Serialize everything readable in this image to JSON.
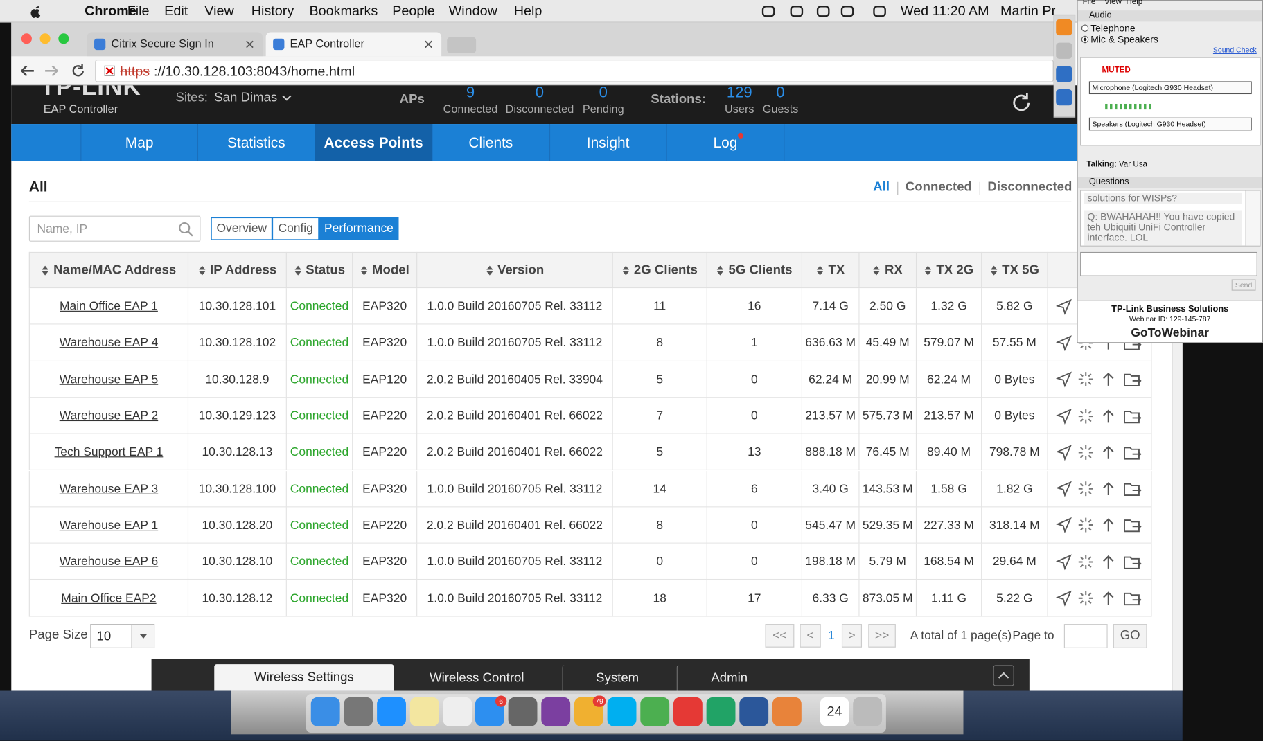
{
  "menubar": {
    "app": "Chrome",
    "menus": [
      "File",
      "Edit",
      "View",
      "History",
      "Bookmarks",
      "People",
      "Window",
      "Help"
    ],
    "clock": "Wed 11:20 AM",
    "user": "Martin Pr"
  },
  "browser": {
    "tabs": [
      "Citrix Secure Sign In",
      "EAP Controller"
    ],
    "active_tab": 1,
    "url_scheme": "https",
    "url_rest": "://10.30.128.103:8043/home.html"
  },
  "header": {
    "logo": "TP-LINK",
    "product": "EAP Controller",
    "sites_label": "Sites:",
    "site": "San Dimas",
    "aps_label": "APs",
    "aps": [
      {
        "value": 9,
        "label": "Connected"
      },
      {
        "value": 0,
        "label": "Disconnected"
      },
      {
        "value": 0,
        "label": "Pending"
      }
    ],
    "stations_label": "Stations:",
    "stations": [
      {
        "value": 129,
        "label": "Users"
      },
      {
        "value": 0,
        "label": "Guests"
      }
    ]
  },
  "nav": {
    "items": [
      "Map",
      "Statistics",
      "Access Points",
      "Clients",
      "Insight",
      "Log"
    ],
    "active": 2
  },
  "content": {
    "title": "All",
    "filters": [
      "All",
      "Connected",
      "Disconnected"
    ],
    "active_filter": 0,
    "search_placeholder": "Name, IP",
    "views": [
      "Overview",
      "Config",
      "Performance"
    ],
    "active_view": 2
  },
  "table": {
    "columns": [
      "Name/MAC Address",
      "IP Address",
      "Status",
      "Model",
      "Version",
      "2G Clients",
      "5G Clients",
      "TX",
      "RX",
      "TX 2G",
      "TX 5G"
    ],
    "rows": [
      [
        "Main Office EAP 1",
        "10.30.128.101",
        "Connected",
        "EAP320",
        "1.0.0 Build 20160705 Rel. 33112",
        11,
        16,
        "7.14 G",
        "2.50 G",
        "1.32 G",
        "5.82 G"
      ],
      [
        "Warehouse EAP 4",
        "10.30.128.102",
        "Connected",
        "EAP320",
        "1.0.0 Build 20160705 Rel. 33112",
        8,
        1,
        "636.63 M",
        "45.49 M",
        "579.07 M",
        "57.55 M"
      ],
      [
        "Warehouse EAP 5",
        "10.30.128.9",
        "Connected",
        "EAP120",
        "2.0.2 Build 20160405 Rel. 33904",
        5,
        0,
        "62.24 M",
        "20.99 M",
        "62.24 M",
        "0 Bytes"
      ],
      [
        "Warehouse EAP 2",
        "10.30.129.123",
        "Connected",
        "EAP220",
        "2.0.2 Build 20160401 Rel. 66022",
        7,
        0,
        "213.57 M",
        "575.73 M",
        "213.57 M",
        "0 Bytes"
      ],
      [
        "Tech Support EAP 1",
        "10.30.128.13",
        "Connected",
        "EAP220",
        "2.0.2 Build 20160401 Rel. 66022",
        5,
        13,
        "888.18 M",
        "76.45 M",
        "89.40 M",
        "798.78 M"
      ],
      [
        "Warehouse EAP 3",
        "10.30.128.100",
        "Connected",
        "EAP320",
        "1.0.0 Build 20160705 Rel. 33112",
        14,
        6,
        "3.40 G",
        "143.53 M",
        "1.58 G",
        "1.82 G"
      ],
      [
        "Warehouse EAP 1",
        "10.30.128.20",
        "Connected",
        "EAP220",
        "2.0.2 Build 20160401 Rel. 66022",
        8,
        0,
        "545.47 M",
        "529.35 M",
        "227.33 M",
        "318.14 M"
      ],
      [
        "Warehouse EAP 6",
        "10.30.128.10",
        "Connected",
        "EAP320",
        "1.0.0 Build 20160705 Rel. 33112",
        0,
        0,
        "198.18 M",
        "5.79 M",
        "168.54 M",
        "29.64 M"
      ],
      [
        "Main Office EAP2",
        "10.30.128.12",
        "Connected",
        "EAP320",
        "1.0.0 Build 20160705 Rel. 33112",
        18,
        17,
        "6.33 G",
        "873.05 M",
        "1.11 G",
        "5.22 G"
      ]
    ]
  },
  "pagination": {
    "size_label": "Page Size",
    "size": 10,
    "first": "<<",
    "prev": "<",
    "current": 1,
    "next": ">",
    "last": ">>",
    "total": "A total of 1 page(s)",
    "page_to": "Page to",
    "go": "GO"
  },
  "bottom_tabs": {
    "items": [
      "Wireless Settings",
      "Wireless Control",
      "System",
      "Admin"
    ],
    "active": 0
  },
  "dock": {
    "badges": [
      "6",
      "79"
    ],
    "calendar_day": "24"
  },
  "webinar": {
    "menu": [
      "File",
      "View",
      "Help"
    ],
    "audio_title": "Audio",
    "audio_options": [
      "Telephone",
      "Mic & Speakers"
    ],
    "audio_selected": 1,
    "sound_check": "Sound Check",
    "muted": "MUTED",
    "microphone": "Microphone (Logitech G930 Headset)",
    "speakers": "Speakers (Logitech G930 Headset)",
    "talking_label": "Talking:",
    "talking": "Var Usa",
    "questions_title": "Questions",
    "questions": [
      "solutions for WISPs?",
      "Q: BWAHAHAH!! You have copied teh Ubiquiti UniFi Controller interface.  LOL"
    ],
    "send": "Send",
    "organizer": "TP-Link Business Solutions",
    "webinar_id": "Webinar ID: 129-145-787",
    "brand": "GoToWebinar"
  }
}
